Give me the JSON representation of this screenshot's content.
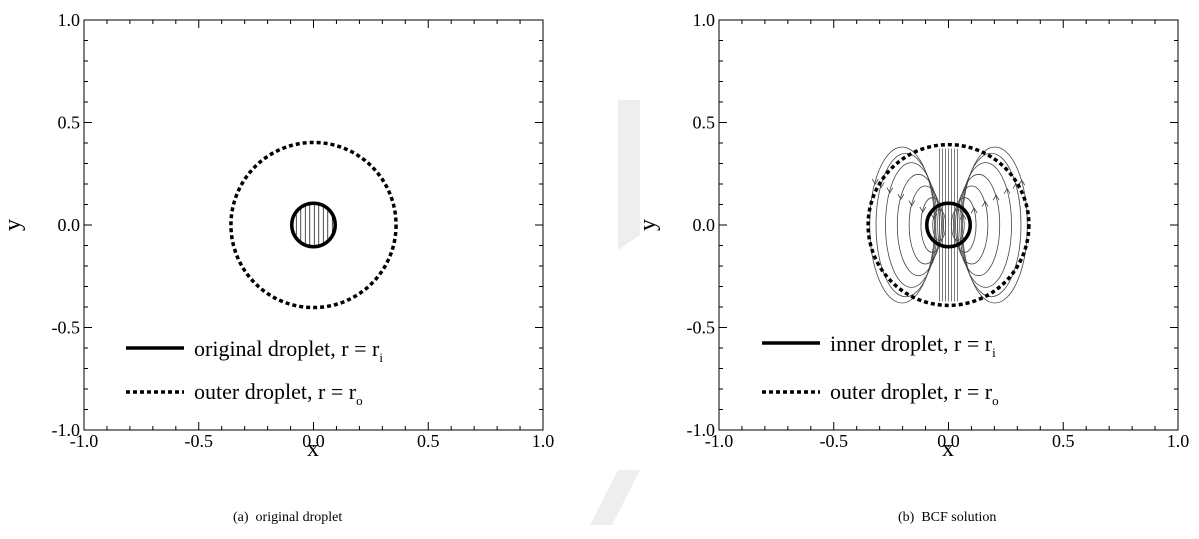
{
  "chart_data": [
    {
      "type": "line",
      "caption_tag": "(a)",
      "caption": "original droplet",
      "xlabel": "x",
      "ylabel": "y",
      "xlim": [
        -1.0,
        1.0
      ],
      "ylim": [
        -1.0,
        1.0
      ],
      "xticks": [
        "-1.0",
        "-0.5",
        "0.0",
        "0.5",
        "1.0"
      ],
      "yticks": [
        "-1.0",
        "-0.5",
        "0.0",
        "0.5",
        "1.0"
      ],
      "tick_values": [
        -1.0,
        -0.5,
        0.0,
        0.5,
        1.0
      ],
      "legend_placement": "bottom-left",
      "series": [
        {
          "name": "original droplet, r = r",
          "subscript": "i",
          "style": "solid",
          "shape": "circle",
          "cx": 0.0,
          "cy": 0.0,
          "r": 0.1
        },
        {
          "name": "outer droplet, r = r",
          "subscript": "o",
          "style": "dotted",
          "shape": "circle",
          "cx": 0.0,
          "cy": 0.0,
          "r": 0.38
        }
      ],
      "interior_pattern": "vertical-hatch"
    },
    {
      "type": "line",
      "caption_tag": "(b)",
      "caption": "BCF solution",
      "xlabel": "x",
      "ylabel": "y",
      "xlim": [
        -1.0,
        1.0
      ],
      "ylim": [
        -1.0,
        1.0
      ],
      "xticks": [
        "-1.0",
        "-0.5",
        "0.0",
        "0.5",
        "1.0"
      ],
      "yticks": [
        "-1.0",
        "-0.5",
        "0.0",
        "0.5",
        "1.0"
      ],
      "tick_values": [
        -1.0,
        -0.5,
        0.0,
        0.5,
        1.0
      ],
      "legend_placement": "bottom-left",
      "series": [
        {
          "name": "inner droplet, r = r",
          "subscript": "i",
          "style": "solid",
          "shape": "circle",
          "cx": 0.0,
          "cy": 0.0,
          "r": 0.1
        },
        {
          "name": "outer droplet, r = r",
          "subscript": "o",
          "style": "dotted",
          "shape": "circle",
          "cx": 0.0,
          "cy": 0.0,
          "r": 0.37
        }
      ],
      "streamlines": {
        "outer_radius": 0.37,
        "vortex_centers_x": [
          -0.13,
          0.13
        ],
        "streamline_fractions": [
          0.2,
          0.35,
          0.5,
          0.65,
          0.8,
          0.92,
          1.0
        ]
      }
    }
  ]
}
